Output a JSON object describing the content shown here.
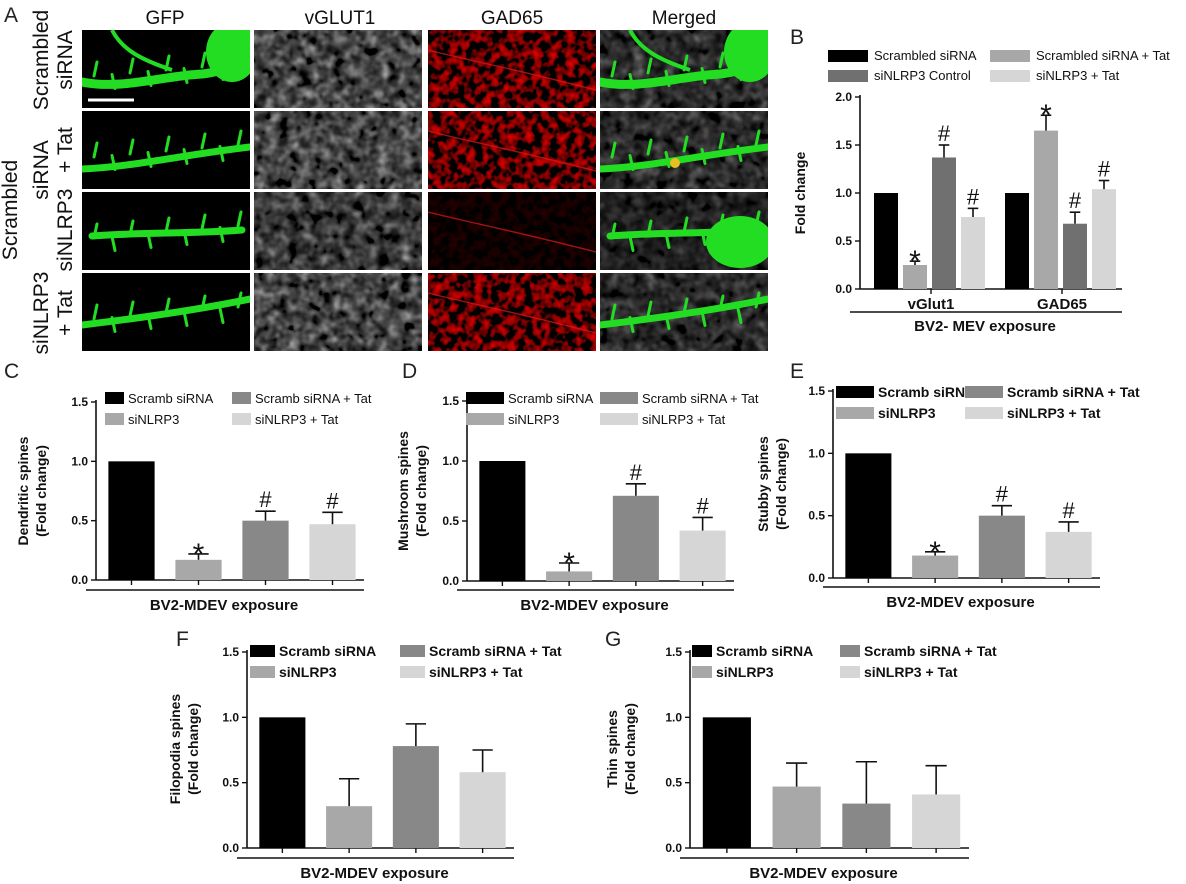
{
  "panel_A": {
    "letter": "A",
    "columns": [
      "GFP",
      "vGLUT1",
      "GAD65",
      "Merged"
    ],
    "rows": [
      {
        "lines": [
          "Scrambled",
          "siRNA"
        ]
      },
      {
        "lines": [
          "siRNA",
          "+ Tat"
        ]
      },
      {
        "lines": [
          "siNLRP3"
        ]
      },
      {
        "lines": [
          "siNLRP3",
          "+ Tat"
        ]
      }
    ],
    "group_label": [
      "Scrambled",
      "siRNA"
    ],
    "channel_colors": {
      "GFP": "#22dd22",
      "vGLUT1": "#d8d8d8",
      "GAD65": "#e01818",
      "Merged": "#22dd22"
    }
  },
  "panel_B": {
    "letter": "B",
    "legend": [
      "Scrambled siRNA",
      "siNLRP3 Control",
      "Scrambled siRNA + Tat",
      "siNLRP3 + Tat"
    ]
  },
  "panel_C": {
    "letter": "C"
  },
  "panel_D": {
    "letter": "D"
  },
  "panel_E": {
    "letter": "E"
  },
  "panel_F": {
    "letter": "F"
  },
  "panel_G": {
    "letter": "G"
  },
  "chart_data": [
    {
      "id": "B",
      "type": "bar",
      "categories": [
        "vGlut1",
        "GAD65"
      ],
      "series": [
        {
          "name": "Scrambled siRNA",
          "color": "#000000",
          "values": [
            1.0,
            1.0
          ],
          "errors": [
            0,
            0
          ],
          "marks": [
            "",
            ""
          ]
        },
        {
          "name": "Scrambled siRNA + Tat",
          "color": "#a8a8a8",
          "values": [
            0.25,
            1.65
          ],
          "errors": [
            0.04,
            0.16
          ],
          "marks": [
            "*",
            "*"
          ]
        },
        {
          "name": "siNLRP3 Control",
          "color": "#707070",
          "values": [
            1.37,
            0.68
          ],
          "errors": [
            0.13,
            0.12
          ],
          "marks": [
            "#",
            "#"
          ]
        },
        {
          "name": "siNLRP3 + Tat",
          "color": "#d6d6d6",
          "values": [
            0.75,
            1.04
          ],
          "errors": [
            0.09,
            0.09
          ],
          "marks": [
            "#",
            "#"
          ]
        }
      ],
      "ylabel": "Fold change",
      "xlabel": "BV2- MEV exposure",
      "ylim": [
        0,
        2.0
      ],
      "yticks": [
        "0.0",
        "0.5",
        "1.0",
        "1.5",
        "2.0"
      ],
      "legend_position": "top"
    },
    {
      "id": "C",
      "type": "bar",
      "categories": [
        "Scramb siRNA",
        "siNLRP3",
        "Scramb siRNA + Tat",
        "siNLRP3 + Tat"
      ],
      "values": [
        1.0,
        0.17,
        0.5,
        0.47
      ],
      "errors": [
        0,
        0.05,
        0.08,
        0.1
      ],
      "marks": [
        "",
        "*",
        "#",
        "#"
      ],
      "colors": [
        "#000000",
        "#a8a8a8",
        "#888888",
        "#d6d6d6"
      ],
      "legend": [
        "Scramb siRNA",
        "siNLRP3",
        "Scramb siRNA + Tat",
        "siNLRP3 + Tat"
      ],
      "ylabel": [
        "Dendritic spines",
        "(Fold change)"
      ],
      "xlabel": "BV2-MDEV exposure",
      "ylim": [
        0,
        1.5
      ],
      "yticks": [
        "0.0",
        "0.5",
        "1.0",
        "1.5"
      ]
    },
    {
      "id": "D",
      "type": "bar",
      "categories": [
        "Scramb siRNA",
        "siNLRP3",
        "Scramb siRNA + Tat",
        "siNLRP3 + Tat"
      ],
      "values": [
        1.0,
        0.08,
        0.71,
        0.42
      ],
      "errors": [
        0,
        0.07,
        0.1,
        0.11
      ],
      "marks": [
        "",
        "*",
        "#",
        "#"
      ],
      "colors": [
        "#000000",
        "#a8a8a8",
        "#888888",
        "#d6d6d6"
      ],
      "legend": [
        "Scramb siRNA",
        "siNLRP3",
        "Scramb siRNA + Tat",
        "siNLRP3 + Tat"
      ],
      "ylabel": [
        "Mushroom spines",
        "(Fold change)"
      ],
      "xlabel": "BV2-MDEV exposure",
      "ylim": [
        0,
        1.5
      ],
      "yticks": [
        "0.0",
        "0.5",
        "1.0",
        "1.5"
      ]
    },
    {
      "id": "E",
      "type": "bar",
      "categories": [
        "Scramb siRNA",
        "siNLRP3",
        "Scramb siRNA + Tat",
        "siNLRP3 + Tat"
      ],
      "values": [
        1.0,
        0.18,
        0.5,
        0.37
      ],
      "errors": [
        0,
        0.03,
        0.08,
        0.08
      ],
      "marks": [
        "",
        "*",
        "#",
        "#"
      ],
      "colors": [
        "#000000",
        "#a8a8a8",
        "#888888",
        "#d6d6d6"
      ],
      "legend": [
        "Scramb siRNA",
        "siNLRP3",
        "Scramb siRNA + Tat",
        "siNLRP3 + Tat"
      ],
      "ylabel": [
        "Stubby spines",
        "(Fold change)"
      ],
      "xlabel": "BV2-MDEV exposure",
      "ylim": [
        0,
        1.5
      ],
      "yticks": [
        "0.0",
        "0.5",
        "1.0",
        "1.5"
      ]
    },
    {
      "id": "F",
      "type": "bar",
      "categories": [
        "Scramb siRNA",
        "siNLRP3",
        "Scramb siRNA + Tat",
        "siNLRP3 + Tat"
      ],
      "values": [
        1.0,
        0.32,
        0.78,
        0.58
      ],
      "errors": [
        0,
        0.21,
        0.17,
        0.17
      ],
      "marks": [
        "",
        "",
        "",
        ""
      ],
      "colors": [
        "#000000",
        "#a8a8a8",
        "#888888",
        "#d6d6d6"
      ],
      "legend": [
        "Scramb siRNA",
        "siNLRP3",
        "Scramb siRNA + Tat",
        "siNLRP3 + Tat"
      ],
      "ylabel": [
        "Filopodia spines",
        "(Fold change)"
      ],
      "xlabel": "BV2-MDEV exposure",
      "ylim": [
        0,
        1.5
      ],
      "yticks": [
        "0.0",
        "0.5",
        "1.0",
        "1.5"
      ]
    },
    {
      "id": "G",
      "type": "bar",
      "categories": [
        "Scramb siRNA",
        "siNLRP3",
        "Scramb siRNA + Tat",
        "siNLRP3 + Tat"
      ],
      "values": [
        1.0,
        0.47,
        0.34,
        0.41
      ],
      "errors": [
        0,
        0.18,
        0.32,
        0.22
      ],
      "marks": [
        "",
        "",
        "",
        ""
      ],
      "colors": [
        "#000000",
        "#a8a8a8",
        "#888888",
        "#d6d6d6"
      ],
      "legend": [
        "Scramb siRNA",
        "siNLRP3",
        "Scramb siRNA + Tat",
        "siNLRP3 + Tat"
      ],
      "ylabel": [
        "Thin spines",
        "(Fold change)"
      ],
      "xlabel": "BV2-MDEV exposure",
      "ylim": [
        0,
        1.5
      ],
      "yticks": [
        "0.0",
        "0.5",
        "1.0",
        "1.5"
      ]
    }
  ]
}
